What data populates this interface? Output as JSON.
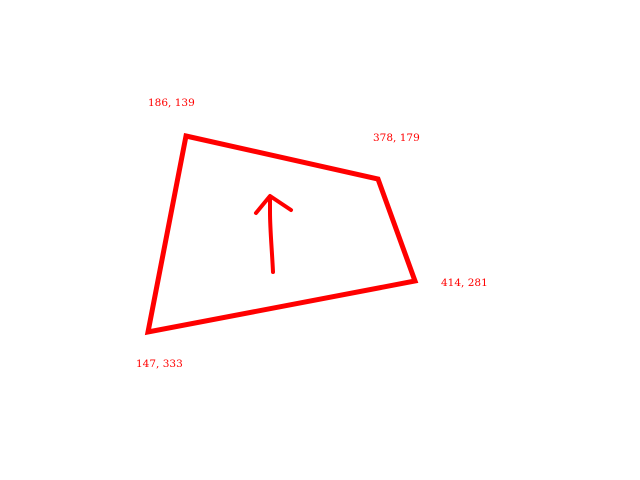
{
  "diagram": {
    "stroke_color": "#ff0000",
    "label_color": "#ff0000",
    "background_color": "#ffffff",
    "vertices": [
      {
        "label": "186, 139"
      },
      {
        "label": "378, 179"
      },
      {
        "label": "414, 281"
      },
      {
        "label": "147, 333"
      }
    ],
    "direction_arrow": {
      "direction": "up",
      "icon": "arrow-up-icon"
    }
  }
}
